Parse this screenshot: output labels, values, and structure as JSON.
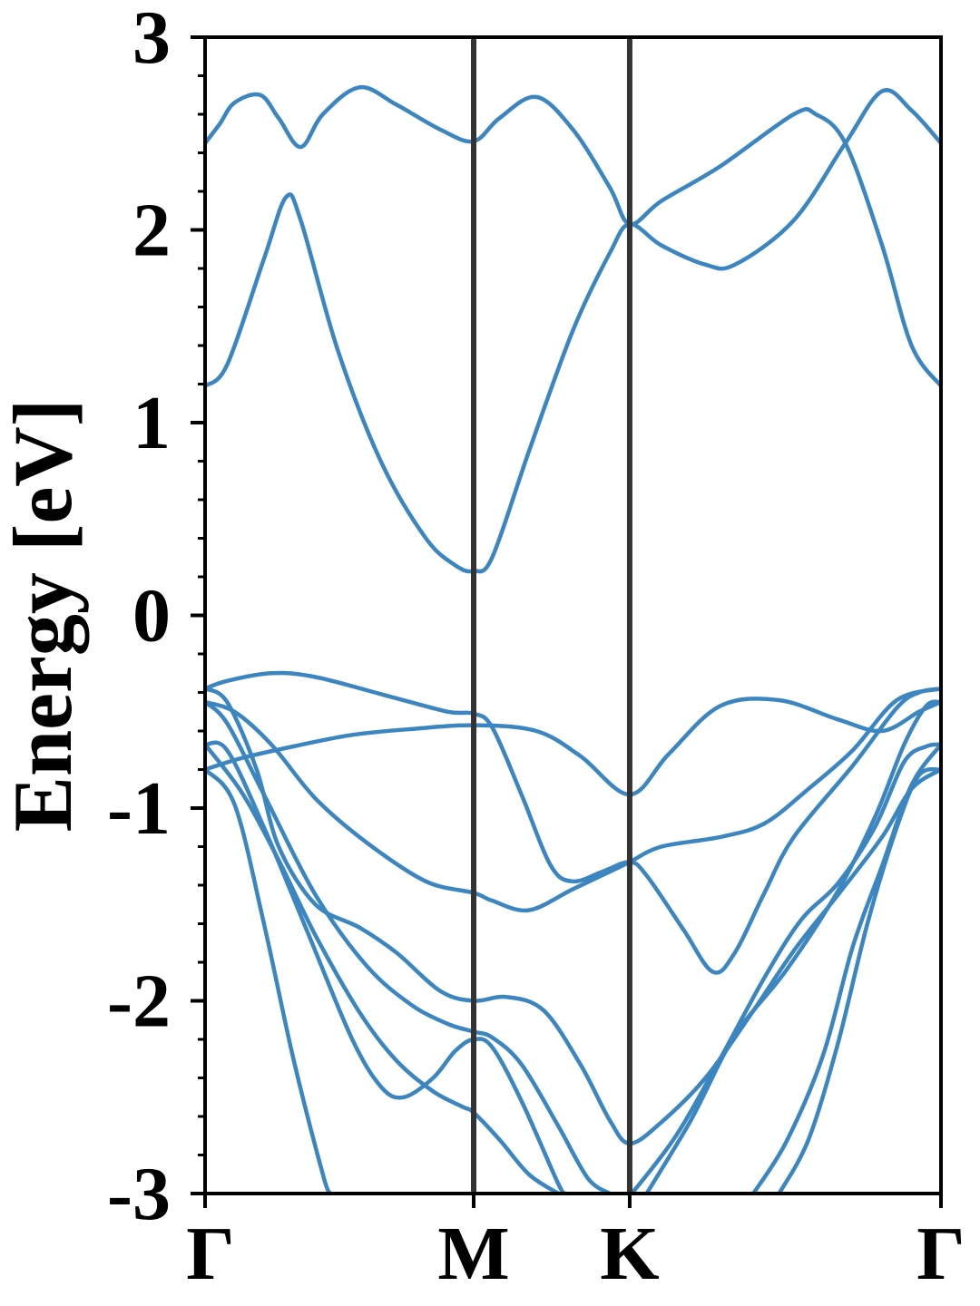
{
  "chart_data": {
    "type": "line",
    "title": "",
    "xlabel": "",
    "ylabel": "Energy [eV]",
    "ylim": [
      -3,
      3
    ],
    "yticks": [
      "3",
      "2",
      "1",
      "0",
      "-1",
      "-2",
      "-3"
    ],
    "ytick_values": [
      3,
      2,
      1,
      0,
      -1,
      -2,
      -3
    ],
    "x_range": [
      0,
      1
    ],
    "kpoints": [
      {
        "label": "Γ",
        "x": 0
      },
      {
        "label": "M",
        "x": 0.365
      },
      {
        "label": "K",
        "x": 0.577
      },
      {
        "label": "Γ",
        "x": 1
      }
    ],
    "grid": false,
    "line_color": "#3b86c0",
    "kline_color": "#333333",
    "series": [
      {
        "values": [
          [
            0,
            2.45
          ],
          [
            0.02,
            2.55
          ],
          [
            0.04,
            2.66
          ],
          [
            0.075,
            2.7
          ],
          [
            0.1,
            2.58
          ],
          [
            0.13,
            2.43
          ],
          [
            0.16,
            2.6
          ],
          [
            0.21,
            2.74
          ],
          [
            0.26,
            2.65
          ],
          [
            0.32,
            2.52
          ],
          [
            0.365,
            2.46
          ],
          [
            0.4,
            2.58
          ],
          [
            0.45,
            2.69
          ],
          [
            0.5,
            2.52
          ],
          [
            0.55,
            2.22
          ],
          [
            0.577,
            2.03
          ],
          [
            0.62,
            2.15
          ],
          [
            0.7,
            2.33
          ],
          [
            0.8,
            2.6
          ],
          [
            0.83,
            2.6
          ],
          [
            0.87,
            2.45
          ],
          [
            0.92,
            1.92
          ],
          [
            0.96,
            1.4
          ],
          [
            1,
            1.19
          ]
        ]
      },
      {
        "values": [
          [
            0,
            1.19
          ],
          [
            0.03,
            1.3
          ],
          [
            0.08,
            1.85
          ],
          [
            0.11,
            2.17
          ],
          [
            0.13,
            2.05
          ],
          [
            0.18,
            1.38
          ],
          [
            0.24,
            0.79
          ],
          [
            0.3,
            0.4
          ],
          [
            0.34,
            0.26
          ],
          [
            0.365,
            0.23
          ],
          [
            0.39,
            0.3
          ],
          [
            0.44,
            0.85
          ],
          [
            0.5,
            1.48
          ],
          [
            0.55,
            1.88
          ],
          [
            0.577,
            2.03
          ],
          [
            0.62,
            1.92
          ],
          [
            0.68,
            1.82
          ],
          [
            0.72,
            1.82
          ],
          [
            0.8,
            2.05
          ],
          [
            0.87,
            2.45
          ],
          [
            0.92,
            2.72
          ],
          [
            0.96,
            2.62
          ],
          [
            1,
            2.45
          ]
        ]
      },
      {
        "values": [
          [
            0,
            -0.38
          ],
          [
            0.03,
            -0.34
          ],
          [
            0.09,
            -0.3
          ],
          [
            0.15,
            -0.32
          ],
          [
            0.25,
            -0.42
          ],
          [
            0.33,
            -0.5
          ],
          [
            0.365,
            -0.51
          ],
          [
            0.39,
            -0.58
          ],
          [
            0.43,
            -0.93
          ],
          [
            0.47,
            -1.3
          ],
          [
            0.5,
            -1.38
          ],
          [
            0.54,
            -1.33
          ],
          [
            0.577,
            -1.28
          ],
          [
            0.6,
            -1.35
          ],
          [
            0.65,
            -1.63
          ],
          [
            0.69,
            -1.85
          ],
          [
            0.72,
            -1.75
          ],
          [
            0.76,
            -1.44
          ],
          [
            0.8,
            -1.15
          ],
          [
            0.88,
            -0.78
          ],
          [
            0.94,
            -0.48
          ],
          [
            0.97,
            -0.4
          ],
          [
            1,
            -0.38
          ]
        ]
      },
      {
        "values": [
          [
            0,
            -0.8
          ],
          [
            0.05,
            -0.74
          ],
          [
            0.12,
            -0.68
          ],
          [
            0.2,
            -0.62
          ],
          [
            0.28,
            -0.59
          ],
          [
            0.365,
            -0.57
          ],
          [
            0.45,
            -0.6
          ],
          [
            0.51,
            -0.73
          ],
          [
            0.577,
            -0.93
          ],
          [
            0.63,
            -0.72
          ],
          [
            0.7,
            -0.47
          ],
          [
            0.78,
            -0.44
          ],
          [
            0.86,
            -0.54
          ],
          [
            0.92,
            -0.6
          ],
          [
            0.97,
            -0.5
          ],
          [
            1,
            -0.45
          ]
        ]
      },
      {
        "values": [
          [
            0,
            -0.45
          ],
          [
            0.04,
            -0.5
          ],
          [
            0.09,
            -0.67
          ],
          [
            0.15,
            -0.95
          ],
          [
            0.22,
            -1.18
          ],
          [
            0.3,
            -1.38
          ],
          [
            0.365,
            -1.44
          ],
          [
            0.39,
            -1.48
          ],
          [
            0.44,
            -1.53
          ],
          [
            0.5,
            -1.42
          ],
          [
            0.55,
            -1.33
          ],
          [
            0.577,
            -1.28
          ],
          [
            0.62,
            -1.2
          ],
          [
            0.7,
            -1.15
          ],
          [
            0.76,
            -1.08
          ],
          [
            0.82,
            -0.9
          ],
          [
            0.88,
            -0.7
          ],
          [
            0.94,
            -0.44
          ],
          [
            1,
            -0.38
          ]
        ]
      },
      {
        "values": [
          [
            0,
            -0.38
          ],
          [
            0.03,
            -0.45
          ],
          [
            0.07,
            -0.8
          ],
          [
            0.1,
            -1.2
          ],
          [
            0.15,
            -1.5
          ],
          [
            0.21,
            -1.62
          ],
          [
            0.26,
            -1.75
          ],
          [
            0.32,
            -1.95
          ],
          [
            0.365,
            -2.0
          ],
          [
            0.41,
            -1.98
          ],
          [
            0.46,
            -2.05
          ],
          [
            0.51,
            -2.33
          ],
          [
            0.55,
            -2.62
          ],
          [
            0.577,
            -2.74
          ],
          [
            0.62,
            -2.63
          ],
          [
            0.68,
            -2.4
          ],
          [
            0.74,
            -2.08
          ],
          [
            0.8,
            -1.74
          ],
          [
            0.86,
            -1.45
          ],
          [
            0.92,
            -1.15
          ],
          [
            0.96,
            -0.9
          ],
          [
            1,
            -0.8
          ]
        ]
      },
      {
        "values": [
          [
            0,
            -0.45
          ],
          [
            0.03,
            -0.56
          ],
          [
            0.08,
            -0.93
          ],
          [
            0.15,
            -1.45
          ],
          [
            0.22,
            -1.82
          ],
          [
            0.28,
            -2.02
          ],
          [
            0.33,
            -2.12
          ],
          [
            0.365,
            -2.16
          ],
          [
            0.39,
            -2.19
          ],
          [
            0.43,
            -2.33
          ],
          [
            0.48,
            -2.65
          ],
          [
            0.52,
            -2.92
          ],
          [
            0.55,
            -3.0
          ]
        ]
      },
      {
        "values": [
          [
            0,
            -0.67
          ],
          [
            0.03,
            -0.7
          ],
          [
            0.08,
            -1.1
          ],
          [
            0.14,
            -1.65
          ],
          [
            0.2,
            -2.2
          ],
          [
            0.24,
            -2.45
          ],
          [
            0.27,
            -2.5
          ],
          [
            0.31,
            -2.4
          ],
          [
            0.34,
            -2.26
          ],
          [
            0.365,
            -2.2
          ],
          [
            0.39,
            -2.24
          ],
          [
            0.43,
            -2.52
          ],
          [
            0.48,
            -2.95
          ],
          [
            0.49,
            -3.0
          ]
        ]
      },
      {
        "values": [
          [
            0,
            -0.67
          ],
          [
            0.05,
            -0.92
          ],
          [
            0.1,
            -1.27
          ],
          [
            0.15,
            -1.66
          ],
          [
            0.21,
            -2.06
          ],
          [
            0.26,
            -2.31
          ],
          [
            0.31,
            -2.47
          ],
          [
            0.35,
            -2.55
          ],
          [
            0.365,
            -2.58
          ],
          [
            0.4,
            -2.72
          ],
          [
            0.44,
            -2.9
          ],
          [
            0.48,
            -3.0
          ]
        ]
      },
      {
        "values": [
          [
            0,
            -0.8
          ],
          [
            0.04,
            -0.98
          ],
          [
            0.08,
            -1.6
          ],
          [
            0.12,
            -2.3
          ],
          [
            0.16,
            -2.9
          ],
          [
            0.17,
            -3.0
          ]
        ]
      },
      {
        "values": [
          [
            0.6,
            -3.0
          ],
          [
            0.66,
            -2.62
          ],
          [
            0.72,
            -2.18
          ],
          [
            0.79,
            -1.84
          ],
          [
            0.86,
            -1.43
          ],
          [
            0.91,
            -1.05
          ],
          [
            0.95,
            -0.67
          ],
          [
            0.98,
            -0.47
          ],
          [
            1,
            -0.45
          ]
        ]
      },
      {
        "values": [
          [
            0.58,
            -3.0
          ],
          [
            0.64,
            -2.7
          ],
          [
            0.7,
            -2.3
          ],
          [
            0.76,
            -1.88
          ],
          [
            0.81,
            -1.58
          ],
          [
            0.86,
            -1.39
          ],
          [
            0.91,
            -1.1
          ],
          [
            0.95,
            -0.76
          ],
          [
            0.98,
            -0.68
          ],
          [
            1,
            -0.67
          ]
        ]
      },
      {
        "values": [
          [
            0.745,
            -3.0
          ],
          [
            0.79,
            -2.73
          ],
          [
            0.84,
            -2.28
          ],
          [
            0.88,
            -1.72
          ],
          [
            0.92,
            -1.3
          ],
          [
            0.96,
            -0.88
          ],
          [
            1,
            -0.67
          ]
        ]
      },
      {
        "values": [
          [
            0.78,
            -3.0
          ],
          [
            0.82,
            -2.72
          ],
          [
            0.86,
            -2.22
          ],
          [
            0.9,
            -1.6
          ],
          [
            0.94,
            -1.1
          ],
          [
            0.97,
            -0.83
          ],
          [
            1,
            -0.8
          ]
        ]
      }
    ]
  }
}
